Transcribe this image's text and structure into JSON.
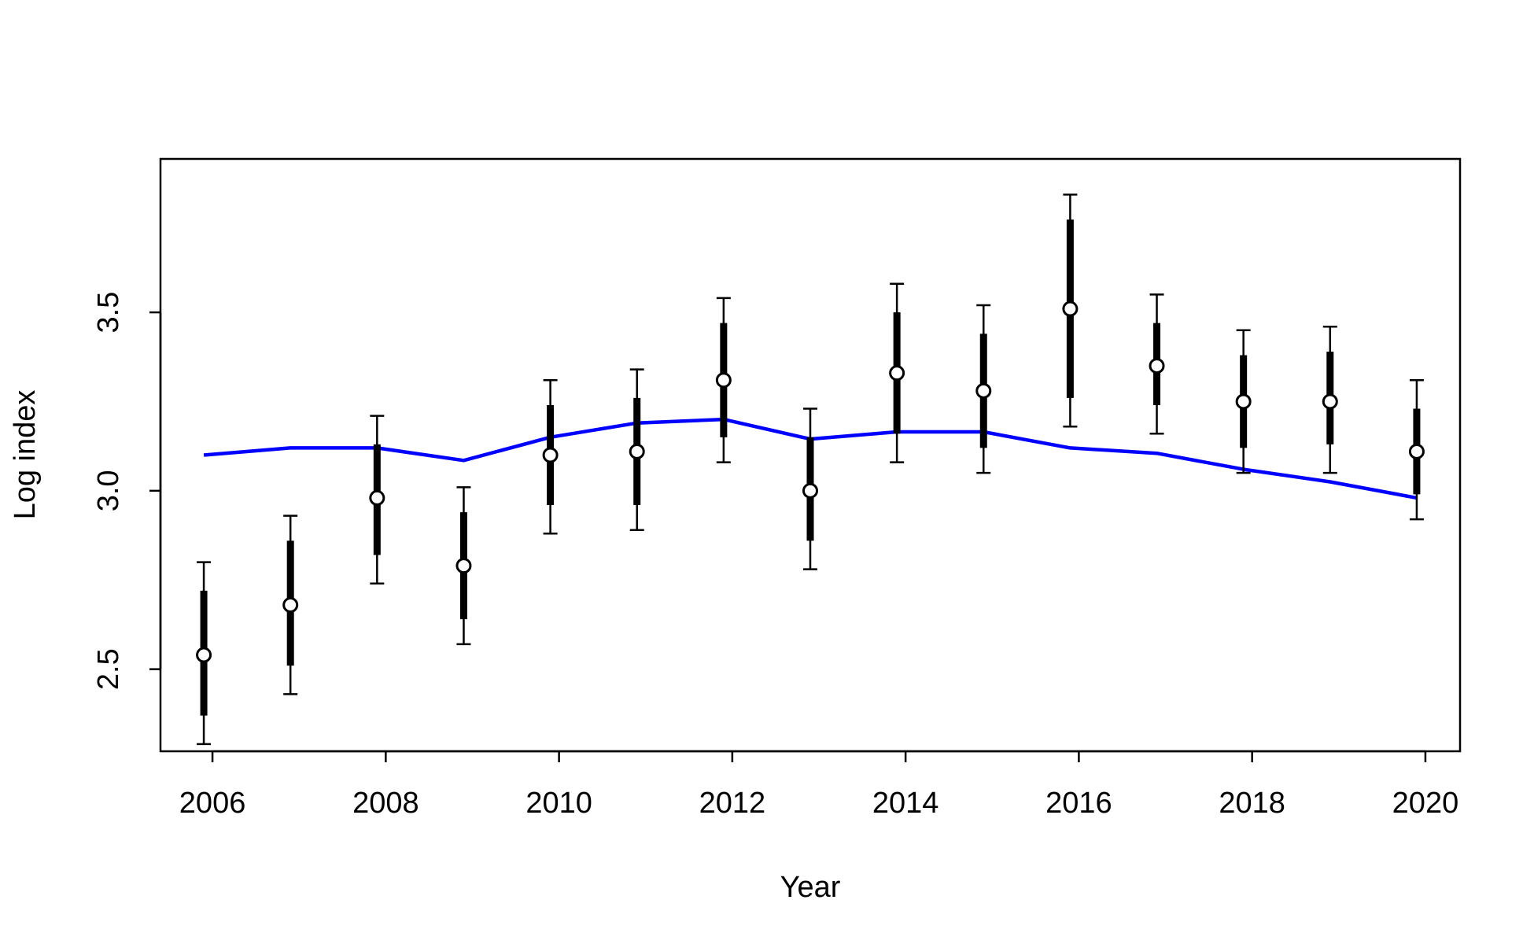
{
  "chart_data": {
    "type": "scatter",
    "title": "",
    "xlabel": "Year",
    "ylabel": "Log index",
    "xlim": [
      2005.4,
      2020.4
    ],
    "ylim": [
      2.27,
      3.93
    ],
    "x_ticks": [
      2006,
      2008,
      2010,
      2012,
      2014,
      2016,
      2018,
      2020
    ],
    "x_tick_labels": [
      "2006",
      "2008",
      "2010",
      "2012",
      "2014",
      "2016",
      "2018",
      "2020"
    ],
    "y_ticks": [
      2.5,
      3.0,
      3.5
    ],
    "y_tick_labels": [
      "2.5",
      "3.0",
      "3.5"
    ],
    "grid": false,
    "series": [
      {
        "kind": "observed",
        "style": "open-circle-with-error-bars",
        "color": "#000000",
        "points": [
          {
            "x": 2005.9,
            "y": 2.54,
            "inner_low": 2.37,
            "inner_high": 2.72,
            "outer_low": 2.29,
            "outer_high": 2.8
          },
          {
            "x": 2006.9,
            "y": 2.68,
            "inner_low": 2.51,
            "inner_high": 2.86,
            "outer_low": 2.43,
            "outer_high": 2.93
          },
          {
            "x": 2007.9,
            "y": 2.98,
            "inner_low": 2.82,
            "inner_high": 3.13,
            "outer_low": 2.74,
            "outer_high": 3.21
          },
          {
            "x": 2008.9,
            "y": 2.79,
            "inner_low": 2.64,
            "inner_high": 2.94,
            "outer_low": 2.57,
            "outer_high": 3.01
          },
          {
            "x": 2009.9,
            "y": 3.1,
            "inner_low": 2.96,
            "inner_high": 3.24,
            "outer_low": 2.88,
            "outer_high": 3.31
          },
          {
            "x": 2010.9,
            "y": 3.11,
            "inner_low": 2.96,
            "inner_high": 3.26,
            "outer_low": 2.89,
            "outer_high": 3.34
          },
          {
            "x": 2011.9,
            "y": 3.31,
            "inner_low": 3.15,
            "inner_high": 3.47,
            "outer_low": 3.08,
            "outer_high": 3.54
          },
          {
            "x": 2012.9,
            "y": 3.0,
            "inner_low": 2.86,
            "inner_high": 3.15,
            "outer_low": 2.78,
            "outer_high": 3.23
          },
          {
            "x": 2013.9,
            "y": 3.33,
            "inner_low": 3.16,
            "inner_high": 3.5,
            "outer_low": 3.08,
            "outer_high": 3.58
          },
          {
            "x": 2014.9,
            "y": 3.28,
            "inner_low": 3.12,
            "inner_high": 3.44,
            "outer_low": 3.05,
            "outer_high": 3.52
          },
          {
            "x": 2015.9,
            "y": 3.51,
            "inner_low": 3.26,
            "inner_high": 3.76,
            "outer_low": 3.18,
            "outer_high": 3.83
          },
          {
            "x": 2016.9,
            "y": 3.35,
            "inner_low": 3.24,
            "inner_high": 3.47,
            "outer_low": 3.16,
            "outer_high": 3.55
          },
          {
            "x": 2017.9,
            "y": 3.25,
            "inner_low": 3.12,
            "inner_high": 3.38,
            "outer_low": 3.05,
            "outer_high": 3.45
          },
          {
            "x": 2018.9,
            "y": 3.25,
            "inner_low": 3.13,
            "inner_high": 3.39,
            "outer_low": 3.05,
            "outer_high": 3.46
          },
          {
            "x": 2019.9,
            "y": 3.11,
            "inner_low": 2.99,
            "inner_high": 3.23,
            "outer_low": 2.92,
            "outer_high": 3.31
          }
        ]
      },
      {
        "kind": "fitted",
        "style": "line",
        "color": "#0000ff",
        "x": [
          2005.9,
          2006.9,
          2007.9,
          2008.9,
          2009.9,
          2010.9,
          2011.9,
          2012.9,
          2013.9,
          2014.9,
          2015.9,
          2016.9,
          2017.9,
          2018.9,
          2019.9
        ],
        "y": [
          3.1,
          3.12,
          3.12,
          3.085,
          3.15,
          3.19,
          3.2,
          3.145,
          3.165,
          3.165,
          3.12,
          3.105,
          3.06,
          3.025,
          2.98
        ]
      }
    ]
  }
}
